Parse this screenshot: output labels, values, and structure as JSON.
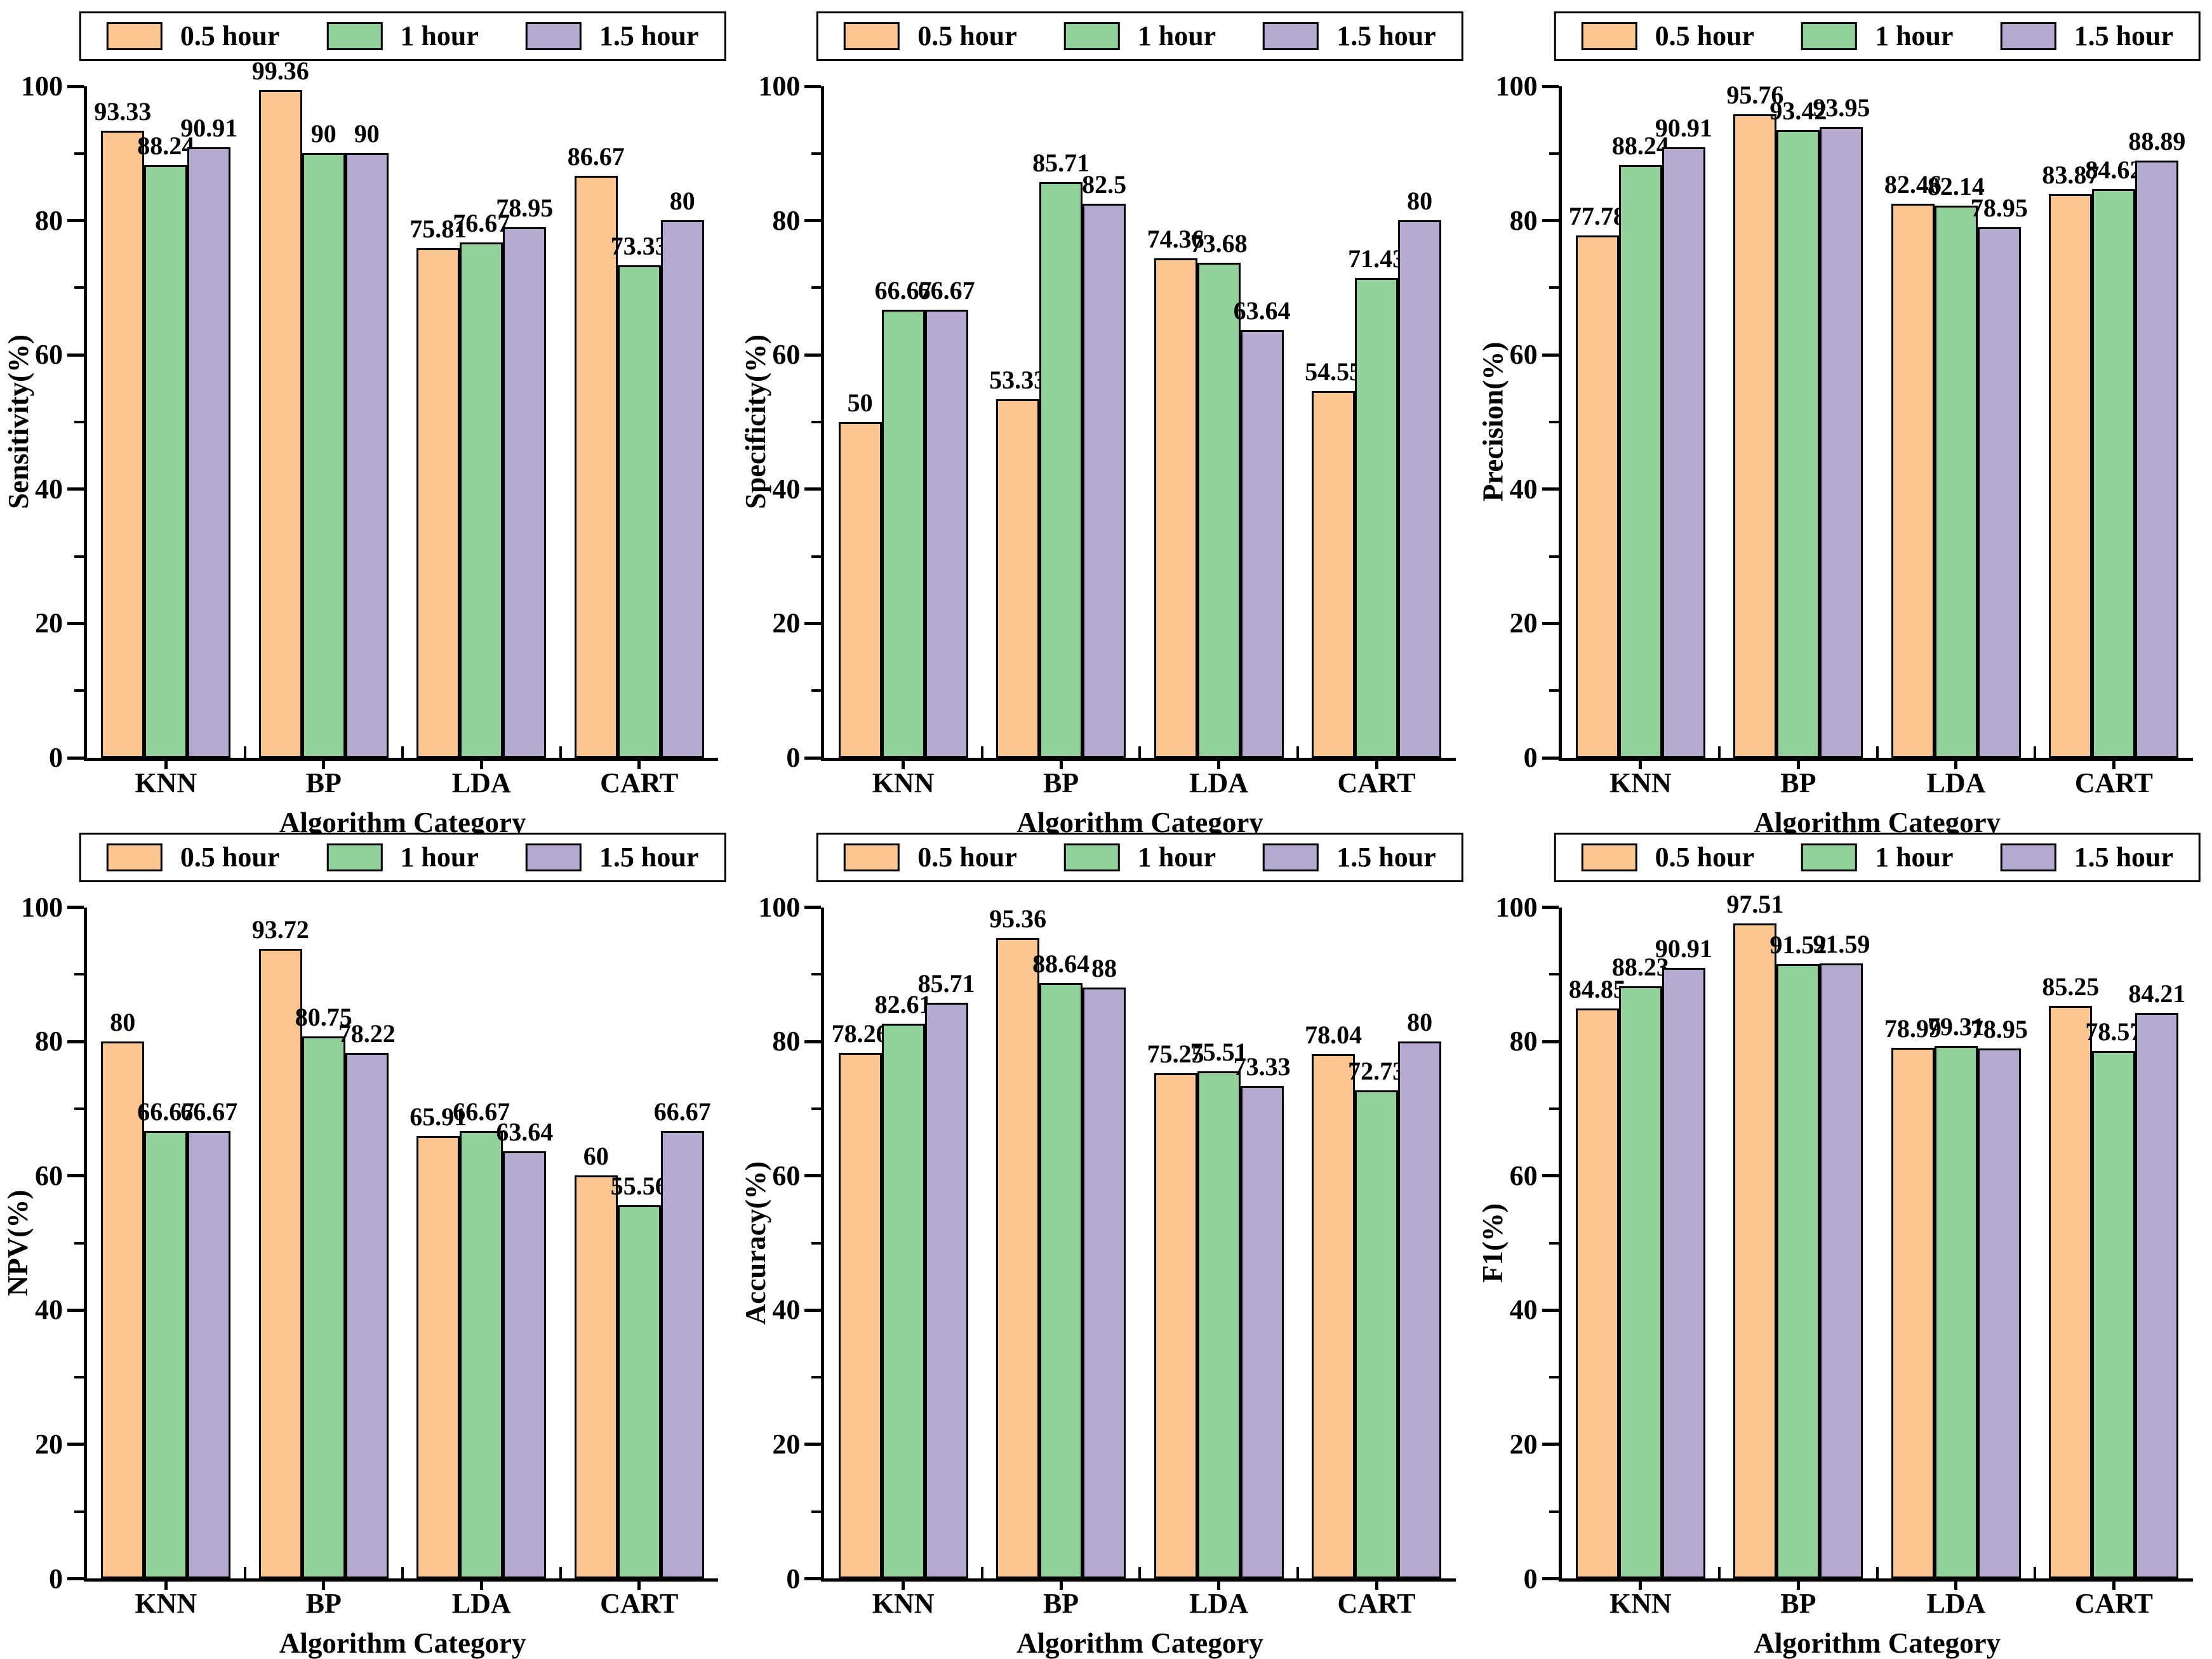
{
  "figure": {
    "legend_labels": [
      "0.5 hour",
      "1 hour",
      "1.5 hour"
    ],
    "series_colors": [
      "#FAC58F",
      "#92D19B",
      "#B6A9D2"
    ],
    "categories": [
      "KNN",
      "BP",
      "LDA",
      "CART"
    ],
    "xlabel": "Algorithm Category",
    "ytick_labels": [
      "0",
      "20",
      "40",
      "60",
      "80",
      "100"
    ],
    "ylim": [
      0,
      100
    ]
  },
  "chart_data": [
    {
      "type": "bar",
      "title": "",
      "ylabel": "Sensitivity(%)",
      "xlabel": "Algorithm Category",
      "categories": [
        "KNN",
        "BP",
        "LDA",
        "CART"
      ],
      "ylim": [
        0,
        100
      ],
      "grid": false,
      "legend_position": "top",
      "series": [
        {
          "name": "0.5 hour",
          "values": [
            93.33,
            99.36,
            75.81,
            86.67
          ],
          "labels": [
            "93.33",
            "99.36",
            "75.81",
            "86.67"
          ]
        },
        {
          "name": "1 hour",
          "values": [
            88.24,
            90,
            76.67,
            73.33
          ],
          "labels": [
            "88.24",
            "90",
            "76.67",
            "73.33"
          ]
        },
        {
          "name": "1.5 hour",
          "values": [
            90.91,
            90,
            78.95,
            80
          ],
          "labels": [
            "90.91",
            "90",
            "78.95",
            "80"
          ]
        }
      ]
    },
    {
      "type": "bar",
      "title": "",
      "ylabel": "Specificity(%)",
      "xlabel": "Algorithm Category",
      "categories": [
        "KNN",
        "BP",
        "LDA",
        "CART"
      ],
      "ylim": [
        0,
        100
      ],
      "grid": false,
      "legend_position": "top",
      "series": [
        {
          "name": "0.5 hour",
          "values": [
            50,
            53.33,
            74.36,
            54.55
          ],
          "labels": [
            "50",
            "53.33",
            "74.36",
            "54.55"
          ]
        },
        {
          "name": "1 hour",
          "values": [
            66.67,
            85.71,
            73.68,
            71.43
          ],
          "labels": [
            "66.67",
            "85.71",
            "73.68",
            "71.43"
          ]
        },
        {
          "name": "1.5 hour",
          "values": [
            66.67,
            82.5,
            63.64,
            80
          ],
          "labels": [
            "66.67",
            "82.5",
            "63.64",
            "80"
          ]
        }
      ]
    },
    {
      "type": "bar",
      "title": "",
      "ylabel": "Precision(%)",
      "xlabel": "Algorithm Category",
      "categories": [
        "KNN",
        "BP",
        "LDA",
        "CART"
      ],
      "ylim": [
        0,
        100
      ],
      "grid": false,
      "legend_position": "top",
      "series": [
        {
          "name": "0.5 hour",
          "values": [
            77.78,
            95.76,
            82.46,
            83.87
          ],
          "labels": [
            "77.78",
            "95.76",
            "82.46",
            "83.87"
          ]
        },
        {
          "name": "1 hour",
          "values": [
            88.24,
            93.42,
            82.14,
            84.62
          ],
          "labels": [
            "88.24",
            "93.42",
            "82.14",
            "84.62"
          ]
        },
        {
          "name": "1.5 hour",
          "values": [
            90.91,
            93.95,
            78.95,
            88.89
          ],
          "labels": [
            "90.91",
            "93.95",
            "78.95",
            "88.89"
          ]
        }
      ]
    },
    {
      "type": "bar",
      "title": "",
      "ylabel": "NPV(%)",
      "xlabel": "Algorithm Category",
      "categories": [
        "KNN",
        "BP",
        "LDA",
        "CART"
      ],
      "ylim": [
        0,
        100
      ],
      "grid": false,
      "legend_position": "top",
      "series": [
        {
          "name": "0.5 hour",
          "values": [
            80,
            93.72,
            65.91,
            60
          ],
          "labels": [
            "80",
            "93.72",
            "65.91",
            "60"
          ]
        },
        {
          "name": "1 hour",
          "values": [
            66.67,
            80.75,
            66.67,
            55.56
          ],
          "labels": [
            "66.67",
            "80.75",
            "66.67",
            "55.56"
          ]
        },
        {
          "name": "1.5 hour",
          "values": [
            66.67,
            78.22,
            63.64,
            66.67
          ],
          "labels": [
            "66.67",
            "78.22",
            "63.64",
            "66.67"
          ]
        }
      ]
    },
    {
      "type": "bar",
      "title": "",
      "ylabel": "Accuracy(%)",
      "xlabel": "Algorithm Category",
      "categories": [
        "KNN",
        "BP",
        "LDA",
        "CART"
      ],
      "ylim": [
        0,
        100
      ],
      "grid": false,
      "legend_position": "top",
      "series": [
        {
          "name": "0.5 hour",
          "values": [
            78.26,
            95.36,
            75.25,
            78.04
          ],
          "labels": [
            "78.26",
            "95.36",
            "75.25",
            "78.04"
          ]
        },
        {
          "name": "1 hour",
          "values": [
            82.61,
            88.64,
            75.51,
            72.73
          ],
          "labels": [
            "82.61",
            "88.64",
            "75.51",
            "72.73"
          ]
        },
        {
          "name": "1.5 hour",
          "values": [
            85.71,
            88,
            73.33,
            80
          ],
          "labels": [
            "85.71",
            "88",
            "73.33",
            "80"
          ]
        }
      ]
    },
    {
      "type": "bar",
      "title": "",
      "ylabel": "F1(%)",
      "xlabel": "Algorithm Category",
      "categories": [
        "KNN",
        "BP",
        "LDA",
        "CART"
      ],
      "ylim": [
        0,
        100
      ],
      "grid": false,
      "legend_position": "top",
      "series": [
        {
          "name": "0.5 hour",
          "values": [
            84.85,
            97.51,
            78.99,
            85.25
          ],
          "labels": [
            "84.85",
            "97.51",
            "78.99",
            "85.25"
          ]
        },
        {
          "name": "1 hour",
          "values": [
            88.23,
            91.52,
            79.31,
            78.57
          ],
          "labels": [
            "88.23",
            "91.52",
            "79.31",
            "78.57"
          ]
        },
        {
          "name": "1.5 hour",
          "values": [
            90.91,
            91.59,
            78.95,
            84.21
          ],
          "labels": [
            "90.91",
            "91.59",
            "78.95",
            "84.21"
          ]
        }
      ]
    }
  ]
}
